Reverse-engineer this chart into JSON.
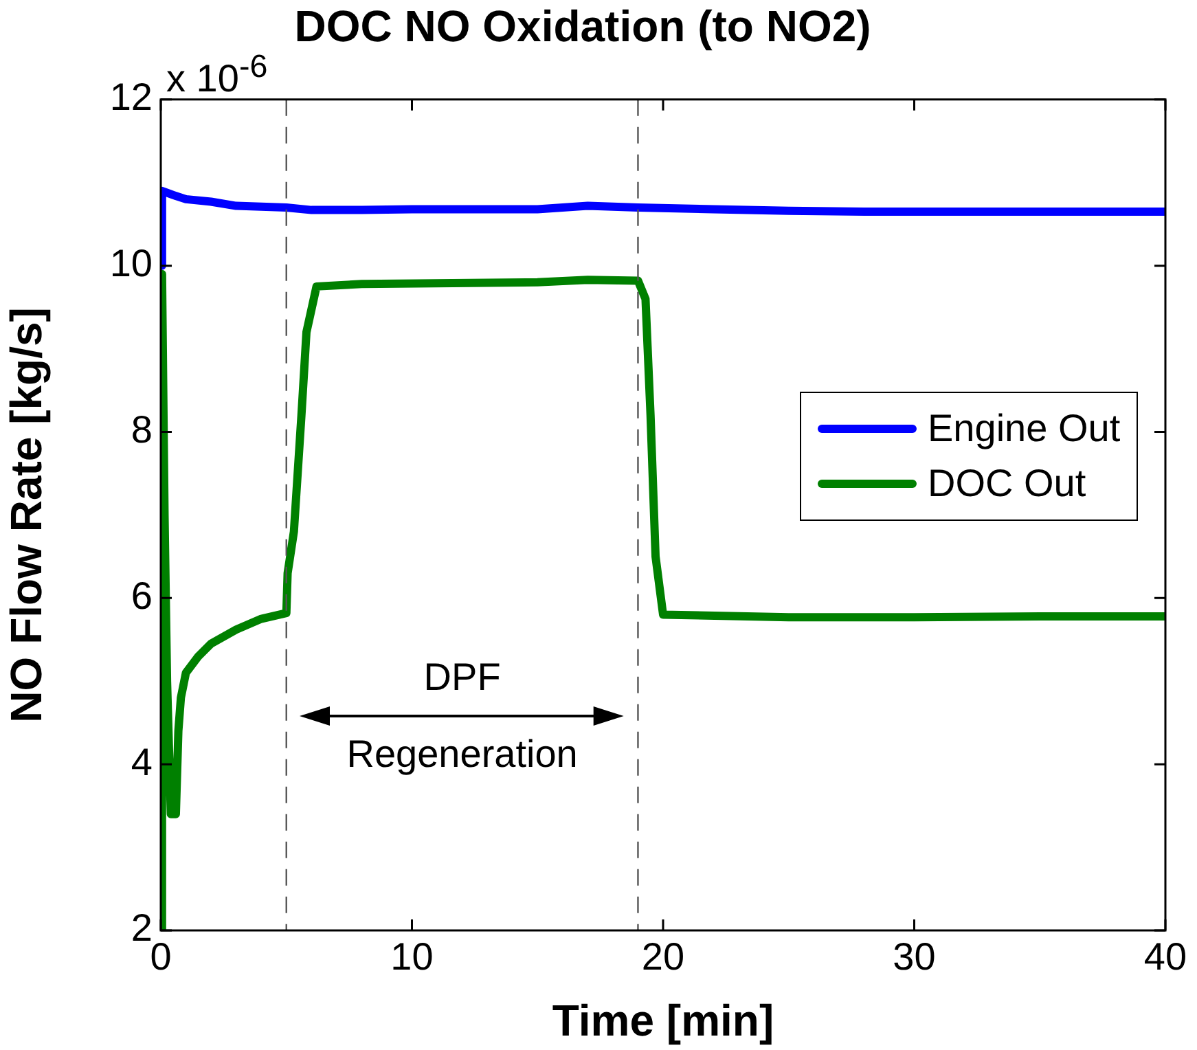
{
  "chart_data": {
    "type": "line",
    "title": "DOC NO Oxidation (to NO2)",
    "xlabel": "Time [min]",
    "ylabel": "NO Flow Rate [kg/s]",
    "annotations": [
      "x 10$^{-6}$",
      "DPF",
      "Regeneration"
    ],
    "xlim": [
      0,
      40
    ],
    "xticks": [
      0,
      10,
      20,
      30,
      40
    ],
    "ylim": [
      2,
      12
    ],
    "yticks": [
      2,
      4,
      6,
      8,
      10,
      12
    ],
    "grid": false,
    "legend": "right",
    "marker": "none",
    "line_style": "solid",
    "ref_lines": [
      {
        "axis": "x",
        "value": 5,
        "color": "#555555",
        "line_style": "dashed"
      },
      {
        "axis": "x",
        "value": 19,
        "color": "#555555",
        "line_style": "dashed"
      }
    ],
    "series": [
      {
        "name": "Engine Out",
        "color": "#0000ff",
        "x": [
          0,
          0.05,
          0.5,
          1,
          2,
          3,
          4,
          5,
          6,
          8,
          10,
          12,
          15,
          17,
          19,
          22,
          25,
          28,
          30,
          35,
          40
        ],
        "values": [
          10.0,
          10.9,
          10.85,
          10.8,
          10.77,
          10.72,
          10.71,
          10.7,
          10.67,
          10.67,
          10.68,
          10.68,
          10.68,
          10.72,
          10.7,
          10.68,
          10.66,
          10.65,
          10.65,
          10.65,
          10.65
        ]
      },
      {
        "name": "DOC Out",
        "color": "#008000",
        "x": [
          0,
          0.05,
          0.15,
          0.25,
          0.4,
          0.6,
          0.7,
          0.8,
          1,
          1.5,
          2,
          3,
          4,
          5,
          5.05,
          5.3,
          5.6,
          5.8,
          6.2,
          8,
          15,
          17,
          19,
          19.3,
          19.5,
          19.7,
          20,
          25,
          30,
          35,
          40
        ],
        "values": [
          2.0,
          9.9,
          7.0,
          5.0,
          3.4,
          3.4,
          4.4,
          4.8,
          5.1,
          5.3,
          5.45,
          5.62,
          5.75,
          5.82,
          6.3,
          6.8,
          8.2,
          9.2,
          9.75,
          9.78,
          9.8,
          9.83,
          9.82,
          9.6,
          8.2,
          6.5,
          5.8,
          5.77,
          5.77,
          5.78,
          5.78
        ]
      }
    ]
  }
}
